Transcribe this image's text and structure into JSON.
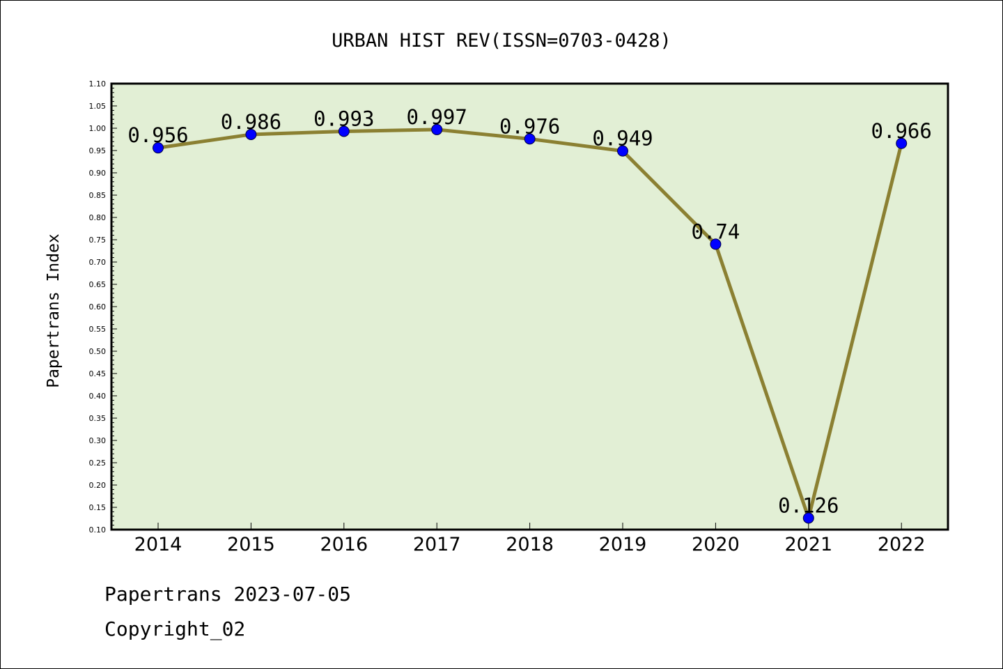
{
  "chart_data": {
    "type": "line",
    "title": "URBAN HIST REV(ISSN=0703-0428)",
    "xlabel": "",
    "ylabel": "Papertrans Index",
    "categories": [
      "2014",
      "2015",
      "2016",
      "2017",
      "2018",
      "2019",
      "2020",
      "2021",
      "2022"
    ],
    "series": [
      {
        "values": [
          0.956,
          0.986,
          0.993,
          0.997,
          0.976,
          0.949,
          0.74,
          0.126,
          0.966
        ],
        "data_labels": [
          "0.956",
          "0.986",
          "0.993",
          "0.997",
          "0.976",
          "0.949",
          "0.74",
          "0.126",
          "0.966"
        ]
      }
    ],
    "ylim": [
      0.1,
      1.1
    ],
    "yticks": [
      "0.10",
      "0.15",
      "0.20",
      "0.25",
      "0.30",
      "0.35",
      "0.40",
      "0.45",
      "0.50",
      "0.55",
      "0.60",
      "0.65",
      "0.70",
      "0.75",
      "0.80",
      "0.85",
      "0.90",
      "0.95",
      "1.00",
      "1.05",
      "1.10"
    ],
    "grid": false,
    "colors": {
      "plot_background": "#e2efd5",
      "line": "#8b8032",
      "marker": "#0000ff"
    }
  },
  "footer": {
    "date_line": "Papertrans 2023-07-05",
    "copyright": "Copyright_02"
  }
}
